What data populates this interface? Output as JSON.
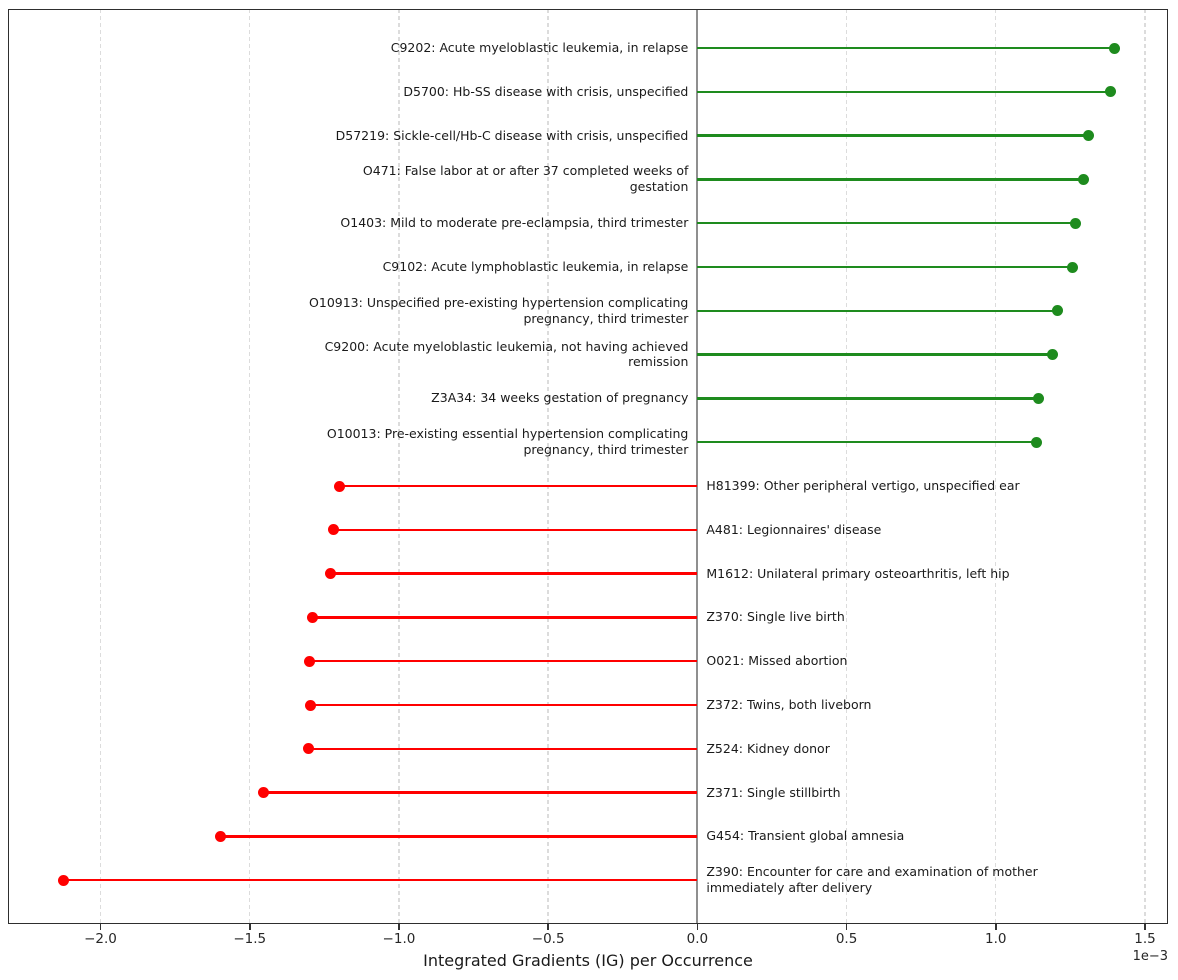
{
  "colors": {
    "positive": "#1e8b1e",
    "negative": "#ff0000",
    "grid": "#dcdcdc",
    "zero_line": "#8f8f8f",
    "spine": "#2e2e2e",
    "text": "#1a1a1a"
  },
  "chart_data": {
    "type": "bar",
    "subtype": "horizontal-lollipop",
    "title": "",
    "xlabel": "Integrated Gradients (IG) per Occurrence",
    "offset_text": "1e−3",
    "unit_multiplier": 0.001,
    "xlim": [
      -2.31,
      1.577
    ],
    "grid": true,
    "zero_line_value": 0,
    "xticks": [
      {
        "value": -2.0,
        "label": "−2.0"
      },
      {
        "value": -1.5,
        "label": "−1.5"
      },
      {
        "value": -1.0,
        "label": "−1.0"
      },
      {
        "value": -0.5,
        "label": "−0.5"
      },
      {
        "value": 0.0,
        "label": "0.0"
      },
      {
        "value": 0.5,
        "label": "0.5"
      },
      {
        "value": 1.0,
        "label": "1.0"
      },
      {
        "value": 1.5,
        "label": "1.5"
      }
    ],
    "items": [
      {
        "code": "C9202",
        "label": "C9202: Acute myeloblastic leukemia, in relapse",
        "value": 1.398
      },
      {
        "code": "D5700",
        "label": "D5700: Hb-SS disease with crisis, unspecified",
        "value": 1.385
      },
      {
        "code": "D57219",
        "label": "D57219: Sickle-cell/Hb-C disease with crisis, unspecified",
        "value": 1.309
      },
      {
        "code": "O471",
        "label": "O471: False labor at or after 37 completed weeks of\ngestation",
        "value": 1.293
      },
      {
        "code": "O1403",
        "label": "O1403: Mild to moderate pre-eclampsia, third trimester",
        "value": 1.268
      },
      {
        "code": "C9102",
        "label": "C9102: Acute lymphoblastic leukemia, in relapse",
        "value": 1.256
      },
      {
        "code": "O10913",
        "label": "O10913: Unspecified pre-existing hypertension complicating\npregnancy, third trimester",
        "value": 1.207
      },
      {
        "code": "C9200",
        "label": "C9200: Acute myeloblastic leukemia, not having achieved\nremission",
        "value": 1.189
      },
      {
        "code": "Z3A34",
        "label": "Z3A34: 34 weeks gestation of pregnancy",
        "value": 1.143
      },
      {
        "code": "O10013",
        "label": "O10013: Pre-existing essential hypertension complicating\npregnancy, third trimester",
        "value": 1.135
      },
      {
        "code": "H81399",
        "label": "H81399: Other peripheral vertigo, unspecified ear",
        "value": -1.199
      },
      {
        "code": "A481",
        "label": "A481: Legionnaires' disease",
        "value": -1.22
      },
      {
        "code": "M1612",
        "label": "M1612: Unilateral primary osteoarthritis, left hip",
        "value": -1.228
      },
      {
        "code": "Z370",
        "label": "Z370: Single live birth",
        "value": -1.288
      },
      {
        "code": "O021",
        "label": "O021: Missed abortion",
        "value": -1.3
      },
      {
        "code": "Z372",
        "label": "Z372: Twins, both liveborn",
        "value": -1.297
      },
      {
        "code": "Z524",
        "label": "Z524: Kidney donor",
        "value": -1.304
      },
      {
        "code": "Z371",
        "label": "Z371: Single stillbirth",
        "value": -1.454
      },
      {
        "code": "G454",
        "label": "G454: Transient global amnesia",
        "value": -1.598
      },
      {
        "code": "Z390",
        "label": "Z390: Encounter for care and examination of mother\nimmediately after delivery",
        "value": -2.124
      }
    ]
  }
}
